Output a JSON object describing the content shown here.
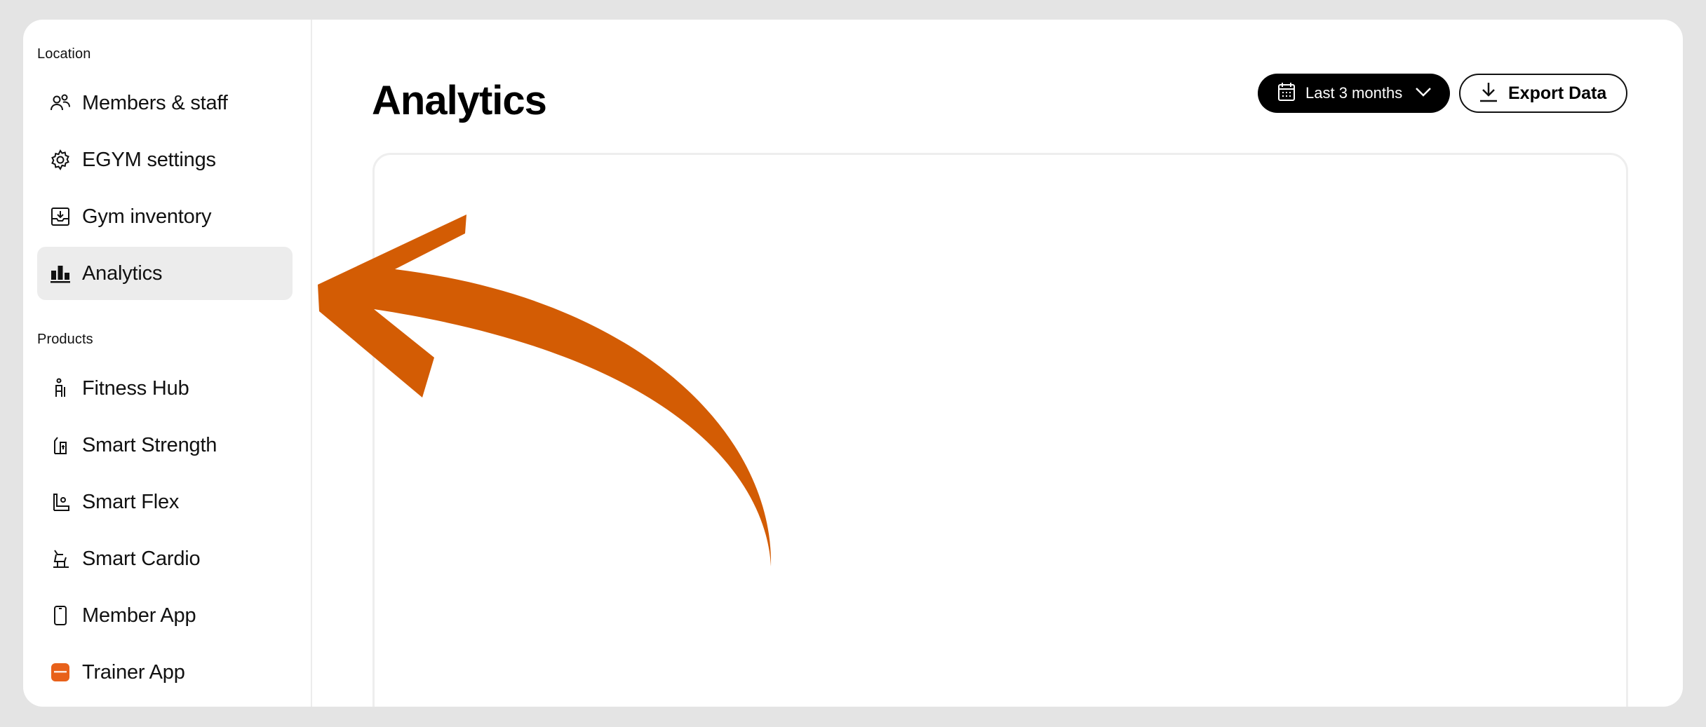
{
  "sidebar": {
    "location_label": "Location",
    "products_label": "Products",
    "location_items": [
      {
        "label": "Members & staff",
        "icon": "members-icon"
      },
      {
        "label": "EGYM settings",
        "icon": "gear-icon"
      },
      {
        "label": "Gym inventory",
        "icon": "inventory-icon"
      },
      {
        "label": "Analytics",
        "icon": "bar-chart-icon",
        "active": true
      }
    ],
    "product_items": [
      {
        "label": "Fitness Hub",
        "icon": "fitness-hub-icon"
      },
      {
        "label": "Smart Strength",
        "icon": "smart-strength-icon"
      },
      {
        "label": "Smart Flex",
        "icon": "smart-flex-icon"
      },
      {
        "label": "Smart Cardio",
        "icon": "smart-cardio-icon"
      },
      {
        "label": "Member App",
        "icon": "phone-icon"
      },
      {
        "label": "Trainer App",
        "icon": "trainer-app-icon"
      }
    ]
  },
  "main": {
    "title": "Analytics",
    "date_range": "Last 3 months",
    "export_label": "Export Data"
  },
  "colors": {
    "annotation_arrow": "#d35c04",
    "active_item_bg": "#ececec",
    "trainer_app_icon": "#e8611a"
  }
}
